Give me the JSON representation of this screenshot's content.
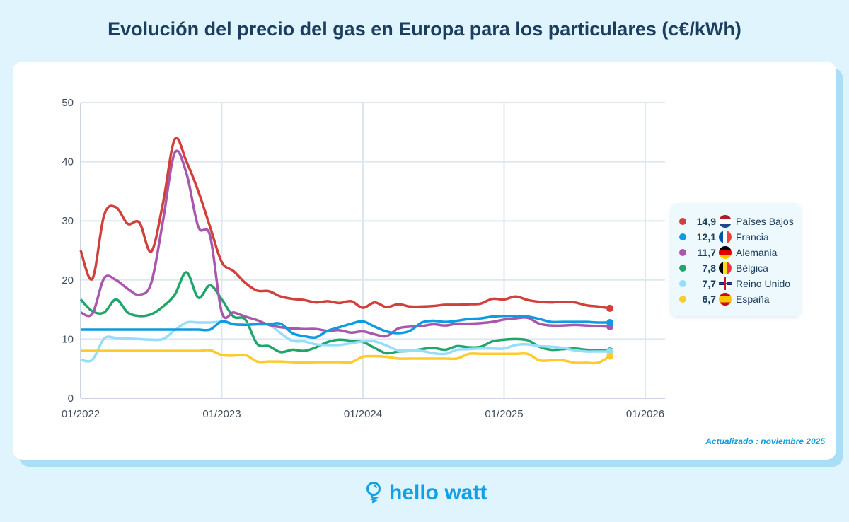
{
  "title": "Evolución del precio del gas en Europa para los particulares (c€/kWh)",
  "updated": "Actualizado : noviembre 2025",
  "logo_text": "hello watt",
  "chart_data": {
    "type": "line",
    "title": "Evolución del precio del gas en Europa para los particulares (c€/kWh)",
    "xlabel": "",
    "ylabel": "",
    "ylim": [
      0,
      50
    ],
    "yticks": [
      "0",
      "10",
      "20",
      "30",
      "40",
      "50"
    ],
    "xticks": [
      "01/2022",
      "01/2023",
      "01/2024",
      "01/2025",
      "01/2026"
    ],
    "xlim": [
      "2022-01",
      "2026-01"
    ],
    "grid": true,
    "legend_position": "right",
    "x": [
      "2022-01",
      "2022-02",
      "2022-03",
      "2022-04",
      "2022-05",
      "2022-06",
      "2022-07",
      "2022-08",
      "2022-09",
      "2022-10",
      "2022-11",
      "2022-12",
      "2023-01",
      "2023-02",
      "2023-03",
      "2023-04",
      "2023-05",
      "2023-06",
      "2023-07",
      "2023-08",
      "2023-09",
      "2023-10",
      "2023-11",
      "2023-12",
      "2024-01",
      "2024-02",
      "2024-03",
      "2024-04",
      "2024-05",
      "2024-06",
      "2024-07",
      "2024-08",
      "2024-09",
      "2024-10",
      "2024-11",
      "2024-12",
      "2025-01",
      "2025-02",
      "2025-03",
      "2025-04",
      "2025-05",
      "2025-06",
      "2025-07",
      "2025-08",
      "2025-09",
      "2025-10"
    ],
    "series": [
      {
        "name": "Países Bajos",
        "legend_value": "14,9",
        "color": "#d0413c",
        "flag": "nl",
        "values": [
          25,
          20.2,
          31,
          32.3,
          29.5,
          29.7,
          24.8,
          33,
          43.8,
          40,
          35,
          29,
          23,
          21.5,
          19.5,
          18.2,
          18.1,
          17.2,
          16.8,
          16.6,
          16.2,
          16.4,
          16.1,
          16.4,
          15.3,
          16.2,
          15.4,
          15.9,
          15.5,
          15.5,
          15.6,
          15.8,
          15.8,
          15.9,
          16,
          16.8,
          16.7,
          17.2,
          16.6,
          16.3,
          16.2,
          16.3,
          16.2,
          15.7,
          15.5,
          15.2
        ]
      },
      {
        "name": "Francia",
        "legend_value": "12,1",
        "color": "#0f9be0",
        "flag": "fr",
        "values": [
          11.6,
          11.6,
          11.6,
          11.6,
          11.6,
          11.6,
          11.6,
          11.6,
          11.6,
          11.6,
          11.6,
          11.6,
          13,
          12.5,
          12.4,
          12.5,
          12.5,
          12.6,
          11,
          10.5,
          10.3,
          11.4,
          12,
          12.6,
          13,
          12.1,
          11.3,
          11,
          11.4,
          12.8,
          13.1,
          12.9,
          13.1,
          13.4,
          13.5,
          13.8,
          13.9,
          13.9,
          13.8,
          13.4,
          12.9,
          12.9,
          12.9,
          12.9,
          12.8,
          12.8
        ]
      },
      {
        "name": "Alemania",
        "legend_value": "11,7",
        "color": "#a957ac",
        "flag": "de",
        "values": [
          14.5,
          14.3,
          20.3,
          20,
          18.5,
          17.5,
          19.5,
          30,
          41.5,
          38,
          29,
          27.5,
          14.5,
          14.5,
          13.8,
          13.2,
          12.4,
          12,
          11.8,
          11.7,
          11.7,
          11.4,
          11.5,
          11.1,
          11.3,
          10.8,
          10.5,
          11.8,
          12.1,
          12.2,
          12.5,
          12.3,
          12.6,
          12.6,
          12.7,
          12.9,
          13.3,
          13.5,
          13.6,
          12.6,
          12.3,
          12.3,
          12.4,
          12.3,
          12.2,
          12.1
        ]
      },
      {
        "name": "Bélgica",
        "legend_value": "7,8",
        "color": "#22a56b",
        "flag": "be",
        "values": [
          16.7,
          14.7,
          14.5,
          16.7,
          14.5,
          13.9,
          14.2,
          15.5,
          17.5,
          21.3,
          17,
          19.1,
          16.7,
          13.8,
          13.3,
          9.2,
          8.8,
          7.8,
          8.2,
          8,
          8.6,
          9.5,
          9.9,
          9.7,
          9.5,
          8.5,
          7.6,
          7.9,
          8,
          8.3,
          8.5,
          8.2,
          8.8,
          8.6,
          8.7,
          9.6,
          9.9,
          10,
          9.8,
          8.7,
          8.2,
          8.3,
          8.4,
          8.2,
          8.1,
          8
        ]
      },
      {
        "name": "Reino Unido",
        "legend_value": "7,7",
        "color": "#96dcfb",
        "flag": "gb",
        "values": [
          6.5,
          6.5,
          10.1,
          10.2,
          10.1,
          10,
          9.9,
          10,
          11.5,
          12.8,
          12.8,
          12.8,
          12.9,
          12.6,
          12.5,
          12.6,
          12.5,
          11,
          9.7,
          9.6,
          9.1,
          9,
          9,
          9.3,
          9.6,
          9.6,
          8.9,
          8.1,
          8.1,
          8,
          7.6,
          7.5,
          8.2,
          8.3,
          8.4,
          8.4,
          8.4,
          9,
          9.1,
          8.8,
          8.7,
          8.5,
          8.1,
          7.9,
          7.9,
          7.9
        ]
      },
      {
        "name": "España",
        "legend_value": "6,7",
        "color": "#fdcb2e",
        "flag": "es",
        "values": [
          8,
          8,
          8,
          8,
          8,
          8,
          8,
          8,
          8,
          8,
          8,
          8.1,
          7.3,
          7.2,
          7.3,
          6.2,
          6.2,
          6.2,
          6.1,
          6,
          6.1,
          6.1,
          6.1,
          6.1,
          7,
          7.1,
          7,
          6.7,
          6.7,
          6.7,
          6.7,
          6.7,
          6.7,
          7.5,
          7.5,
          7.5,
          7.5,
          7.5,
          7.5,
          6.4,
          6.4,
          6.4,
          6,
          6,
          6,
          7.1
        ]
      }
    ]
  }
}
